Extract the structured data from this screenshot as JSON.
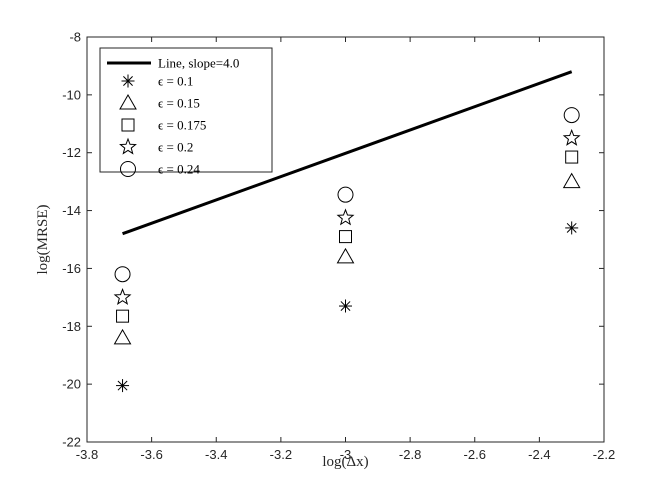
{
  "chart_data": {
    "type": "scatter",
    "xlabel": "log(Δx)",
    "ylabel": "log(MRSE)",
    "xlim": [
      -3.8,
      -2.2
    ],
    "ylim": [
      -22,
      -8
    ],
    "xticks": [
      -3.8,
      -3.6,
      -3.4,
      -3.2,
      -3,
      -2.8,
      -2.6,
      -2.4,
      -2.2
    ],
    "yticks": [
      -22,
      -20,
      -18,
      -16,
      -14,
      -12,
      -10,
      -8
    ],
    "xtick_labels": [
      "-3.8",
      "-3.6",
      "-3.4",
      "-3.2",
      "-3",
      "-2.8",
      "-2.6",
      "-2.4",
      "-2.2"
    ],
    "ytick_labels": [
      "-22",
      "-20",
      "-18",
      "-16",
      "-14",
      "-12",
      "-10",
      "-8"
    ],
    "grid": false,
    "legend_position": "top-left",
    "line": {
      "name": "Line, slope=4.0",
      "x": [
        -3.69,
        -2.3
      ],
      "y": [
        -14.8,
        -9.2
      ]
    },
    "series": [
      {
        "name": "ϵ = 0.1",
        "marker": "asterisk",
        "x": [
          -3.69,
          -3.0,
          -2.3
        ],
        "y": [
          -20.05,
          -17.3,
          -14.6
        ]
      },
      {
        "name": "ϵ = 0.15",
        "marker": "triangle",
        "x": [
          -3.69,
          -3.0,
          -2.3
        ],
        "y": [
          -18.4,
          -15.6,
          -13.0
        ]
      },
      {
        "name": "ϵ = 0.175",
        "marker": "square",
        "x": [
          -3.69,
          -3.0,
          -2.3
        ],
        "y": [
          -17.65,
          -14.9,
          -12.15
        ]
      },
      {
        "name": "ϵ = 0.2",
        "marker": "star",
        "x": [
          -3.69,
          -3.0,
          -2.3
        ],
        "y": [
          -17.0,
          -14.25,
          -11.5
        ]
      },
      {
        "name": "ϵ = 0.24",
        "marker": "circle",
        "x": [
          -3.69,
          -3.0,
          -2.3
        ],
        "y": [
          -16.2,
          -13.45,
          -10.7
        ]
      }
    ]
  }
}
